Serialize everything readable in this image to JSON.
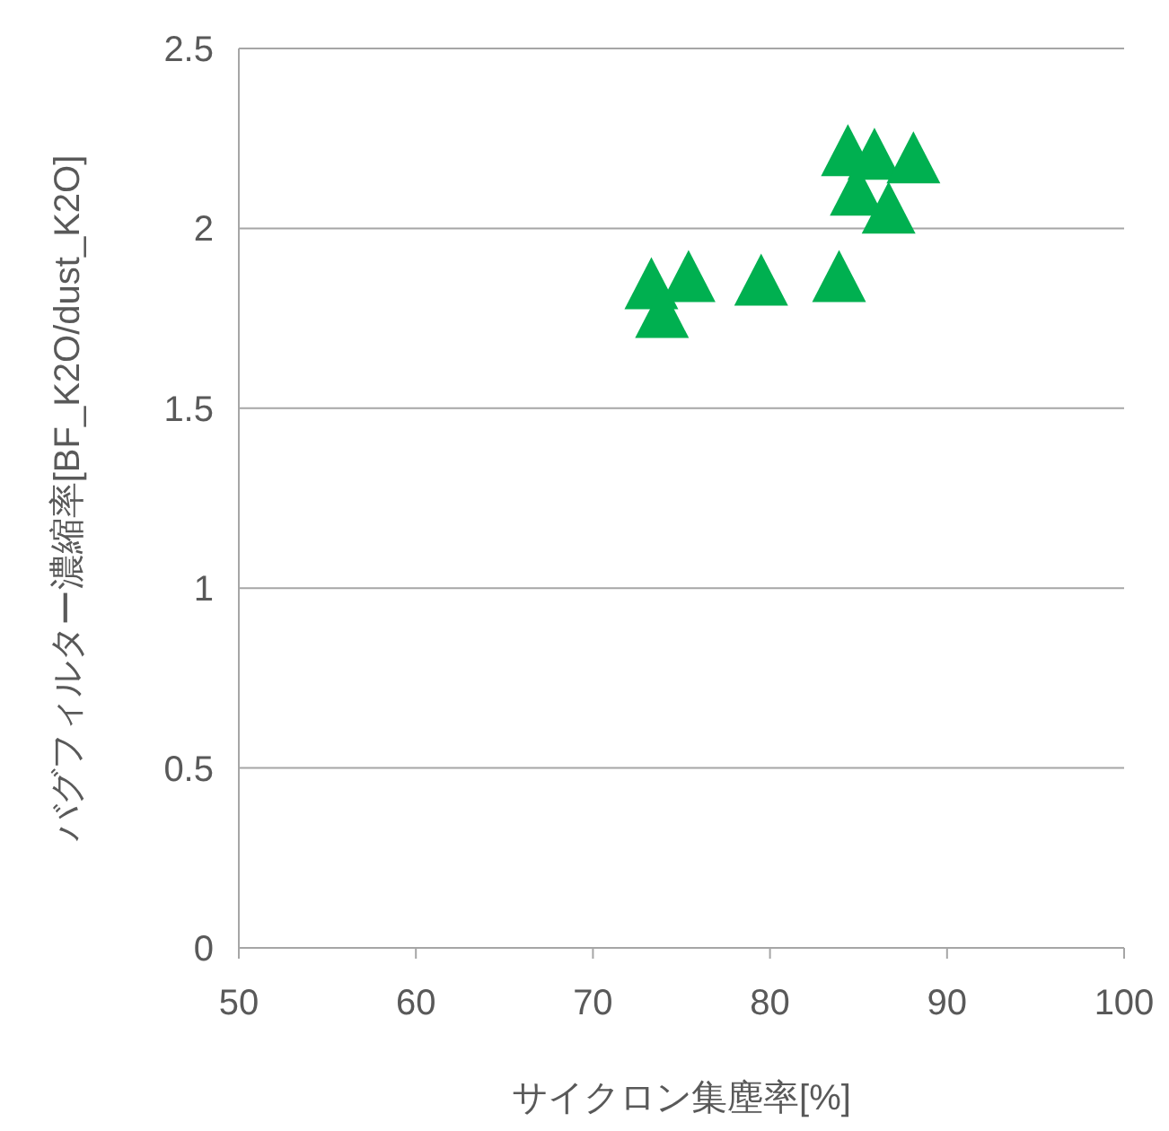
{
  "chart_data": {
    "type": "scatter",
    "xlabel": "サイクロン集塵率[%]",
    "ylabel": "バグフィルター濃縮率[BF_K2O/dust_K2O]",
    "x": [
      73.3,
      75.4,
      73.9,
      79.5,
      83.9,
      84.4,
      85.9,
      88.1,
      84.9,
      86.7
    ],
    "series": [
      {
        "color": "#00b050",
        "values": [
          1.83,
          1.85,
          1.75,
          1.84,
          1.85,
          2.2,
          2.19,
          2.18,
          2.09,
          2.04
        ]
      }
    ],
    "xlim": [
      50,
      100
    ],
    "xticks": [
      50,
      60,
      70,
      80,
      90,
      100
    ],
    "ylim": [
      0,
      2.5
    ],
    "yticks": [
      0,
      0.5,
      1,
      1.5,
      2,
      2.5
    ],
    "grid": "y",
    "marker": "triangle"
  }
}
